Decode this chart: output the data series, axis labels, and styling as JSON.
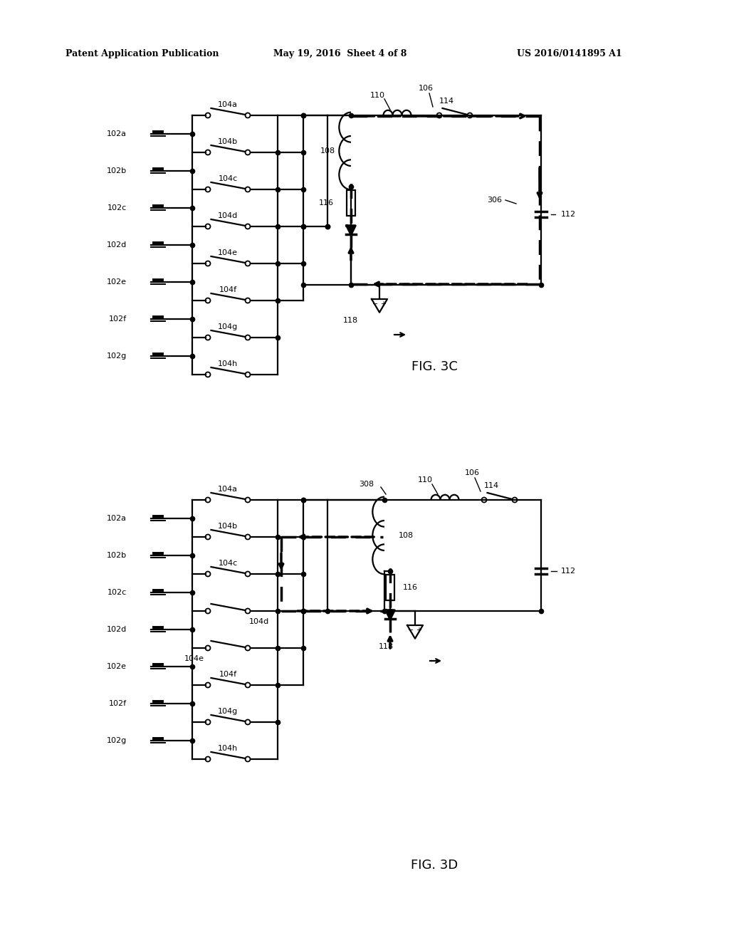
{
  "bg_color": "#ffffff",
  "header_left": "Patent Application Publication",
  "header_center": "May 19, 2016  Sheet 4 of 8",
  "header_right": "US 2016/0141895 A1",
  "fig3c_label": "FIG. 3C",
  "fig3d_label": "FIG. 3D",
  "lw": 1.6,
  "lw_bold": 2.5,
  "lw_dash": 2.5,
  "bat_labels": [
    "102a",
    "102b",
    "102c",
    "102d",
    "102e",
    "102f",
    "102g"
  ],
  "sw_labels_3c": [
    "104a",
    "104b",
    "104c",
    "104d",
    "104e",
    "104f",
    "104g",
    "104h"
  ],
  "sw_labels_3d": [
    "104a",
    "104b",
    "104c",
    "104d",
    "104e",
    "104f",
    "104g",
    "104h"
  ]
}
